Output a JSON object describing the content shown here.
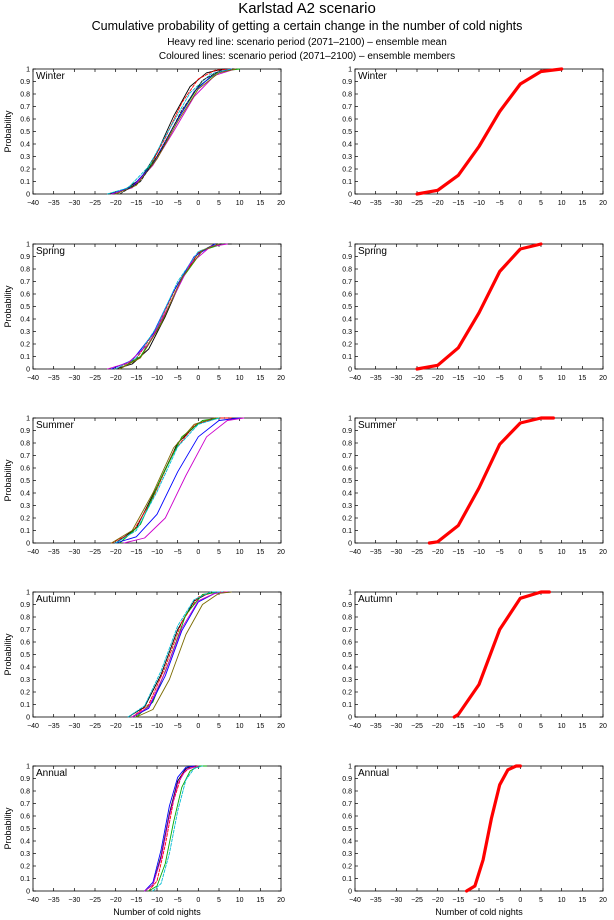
{
  "figure": {
    "title": "Karlstad A2 scenario",
    "subtitle": "Cumulative probability of getting a certain change in the number of cold nights",
    "note1": "Heavy red line: scenario period (2071–2100) – ensemble mean",
    "note2": "Coloured lines: scenario period (2071–2100) – ensemble members"
  },
  "chart_data": {
    "type": "line",
    "layout": "5 rows x 2 columns; left column = ensemble members, right column = ensemble mean",
    "xlabel": "Number of cold nights",
    "ylabel": "Probability",
    "xlim": [
      -40,
      20
    ],
    "ylim": [
      0,
      1
    ],
    "xticks": [
      -40,
      -35,
      -30,
      -25,
      -20,
      -15,
      -10,
      -5,
      0,
      5,
      10,
      15,
      20
    ],
    "yticks": [
      0,
      0.1,
      0.2,
      0.3,
      0.4,
      0.5,
      0.6,
      0.7,
      0.8,
      0.9,
      1
    ],
    "grid": false,
    "member_colors": [
      "#000000",
      "#ff0000",
      "#00aa00",
      "#0000ff",
      "#00bcd4",
      "#cc00cc",
      "#7a6a00",
      "#222222"
    ],
    "mean_color": "#ff0000",
    "panels": [
      {
        "season": "Winter",
        "mean": {
          "x": [
            -25,
            -20,
            -15,
            -10,
            -5,
            0,
            5,
            10
          ],
          "y": [
            0,
            0.03,
            0.15,
            0.38,
            0.66,
            0.88,
            0.98,
            1
          ]
        },
        "members": [
          {
            "x": [
              -22,
              -18,
              -14,
              -10,
              -6,
              -2,
              2,
              6,
              9
            ],
            "y": [
              0,
              0.03,
              0.12,
              0.33,
              0.62,
              0.86,
              0.97,
              1,
              1
            ]
          },
          {
            "x": [
              -20,
              -16,
              -12,
              -8,
              -4,
              0,
              4,
              8
            ],
            "y": [
              0,
              0.06,
              0.2,
              0.45,
              0.73,
              0.92,
              0.99,
              1
            ]
          },
          {
            "x": [
              -20,
              -15,
              -10,
              -5,
              0,
              5,
              10
            ],
            "y": [
              0,
              0.08,
              0.3,
              0.6,
              0.86,
              0.98,
              1
            ]
          },
          {
            "x": [
              -21,
              -16,
              -11,
              -6,
              -1,
              4,
              8
            ],
            "y": [
              0,
              0.06,
              0.24,
              0.54,
              0.82,
              0.97,
              1
            ]
          },
          {
            "x": [
              -22,
              -17,
              -12,
              -7,
              -2,
              3,
              8
            ],
            "y": [
              0,
              0.05,
              0.22,
              0.52,
              0.81,
              0.96,
              1
            ]
          },
          {
            "x": [
              -21,
              -16,
              -11,
              -6,
              -1,
              4,
              9
            ],
            "y": [
              0,
              0.05,
              0.23,
              0.5,
              0.78,
              0.95,
              1
            ]
          },
          {
            "x": [
              -20,
              -15,
              -10,
              -5,
              0,
              5,
              9
            ],
            "y": [
              0,
              0.07,
              0.28,
              0.58,
              0.84,
              0.97,
              1
            ]
          },
          {
            "x": [
              -19,
              -14,
              -9,
              -4,
              1,
              6
            ],
            "y": [
              0,
              0.1,
              0.35,
              0.67,
              0.91,
              1
            ]
          }
        ]
      },
      {
        "season": "Spring",
        "mean": {
          "x": [
            -25,
            -20,
            -15,
            -10,
            -5,
            0,
            5
          ],
          "y": [
            0,
            0.03,
            0.17,
            0.45,
            0.78,
            0.96,
            1
          ]
        },
        "members": [
          {
            "x": [
              -20,
              -16,
              -12,
              -8,
              -4,
              0,
              4,
              8
            ],
            "y": [
              0,
              0.04,
              0.16,
              0.42,
              0.72,
              0.93,
              1,
              1
            ]
          },
          {
            "x": [
              -20,
              -15,
              -10,
              -5,
              0,
              5
            ],
            "y": [
              0,
              0.08,
              0.33,
              0.68,
              0.93,
              1
            ]
          },
          {
            "x": [
              -19,
              -14,
              -9,
              -4,
              1,
              6
            ],
            "y": [
              0,
              0.1,
              0.37,
              0.72,
              0.95,
              1
            ]
          },
          {
            "x": [
              -21,
              -16,
              -11,
              -6,
              -1,
              4
            ],
            "y": [
              0,
              0.07,
              0.28,
              0.62,
              0.9,
              1
            ]
          },
          {
            "x": [
              -20,
              -15,
              -10,
              -5,
              0,
              5
            ],
            "y": [
              0,
              0.09,
              0.34,
              0.7,
              0.94,
              1
            ]
          },
          {
            "x": [
              -22,
              -17,
              -12,
              -7,
              -2,
              3,
              7
            ],
            "y": [
              0,
              0.05,
              0.2,
              0.51,
              0.84,
              0.98,
              1
            ]
          },
          {
            "x": [
              -19,
              -14,
              -9,
              -4,
              1,
              5
            ],
            "y": [
              0,
              0.09,
              0.36,
              0.73,
              0.95,
              1
            ]
          }
        ]
      },
      {
        "season": "Summer",
        "mean": {
          "x": [
            -22,
            -20,
            -15,
            -10,
            -5,
            0,
            5,
            8
          ],
          "y": [
            0,
            0.01,
            0.14,
            0.44,
            0.79,
            0.96,
            1,
            1
          ]
        },
        "members": [
          {
            "x": [
              -20,
              -15,
              -10,
              -5,
              0,
              5,
              8
            ],
            "y": [
              0,
              0.12,
              0.45,
              0.8,
              0.96,
              1,
              1
            ]
          },
          {
            "x": [
              -21,
              -16,
              -11,
              -6,
              -1,
              4,
              8
            ],
            "y": [
              0,
              0.08,
              0.36,
              0.73,
              0.94,
              1,
              1
            ]
          },
          {
            "x": [
              -19,
              -14,
              -9,
              -4,
              1,
              5
            ],
            "y": [
              0,
              0.15,
              0.52,
              0.85,
              0.98,
              1
            ]
          },
          {
            "x": [
              -20,
              -15,
              -10,
              -5,
              0,
              5,
              10
            ],
            "y": [
              0,
              0.05,
              0.23,
              0.57,
              0.85,
              0.98,
              1
            ]
          },
          {
            "x": [
              -20,
              -15,
              -10,
              -5,
              0,
              5
            ],
            "y": [
              0,
              0.1,
              0.41,
              0.77,
              0.95,
              1
            ]
          },
          {
            "x": [
              -18,
              -13,
              -8,
              -3,
              2,
              7,
              11
            ],
            "y": [
              0,
              0.04,
              0.2,
              0.54,
              0.85,
              0.98,
              1
            ]
          },
          {
            "x": [
              -21,
              -16,
              -11,
              -6,
              -1,
              4
            ],
            "y": [
              0,
              0.1,
              0.4,
              0.76,
              0.95,
              1
            ]
          }
        ]
      },
      {
        "season": "Autumn",
        "mean": {
          "x": [
            -16,
            -15,
            -10,
            -5,
            0,
            5,
            7
          ],
          "y": [
            0,
            0.02,
            0.26,
            0.7,
            0.95,
            1,
            1
          ]
        },
        "members": [
          {
            "x": [
              -17,
              -13,
              -9,
              -5,
              -1,
              3,
              7
            ],
            "y": [
              0,
              0.08,
              0.34,
              0.7,
              0.93,
              1,
              1
            ]
          },
          {
            "x": [
              -16,
              -12,
              -8,
              -4,
              0,
              4,
              7
            ],
            "y": [
              0,
              0.1,
              0.4,
              0.76,
              0.96,
              1,
              1
            ]
          },
          {
            "x": [
              -15,
              -11,
              -7,
              -3,
              1,
              5
            ],
            "y": [
              0,
              0.12,
              0.45,
              0.82,
              0.98,
              1
            ]
          },
          {
            "x": [
              -16,
              -12,
              -8,
              -4,
              0,
              4,
              8
            ],
            "y": [
              0,
              0.07,
              0.33,
              0.69,
              0.92,
              0.99,
              1
            ]
          },
          {
            "x": [
              -17,
              -13,
              -9,
              -5,
              -1,
              3,
              6
            ],
            "y": [
              0,
              0.09,
              0.37,
              0.73,
              0.94,
              1,
              1
            ]
          },
          {
            "x": [
              -16,
              -12,
              -8,
              -4,
              0,
              4,
              7
            ],
            "y": [
              0,
              0.08,
              0.36,
              0.71,
              0.93,
              0.99,
              1
            ]
          },
          {
            "x": [
              -15,
              -11,
              -7,
              -3,
              1,
              5,
              8
            ],
            "y": [
              0,
              0.06,
              0.3,
              0.66,
              0.9,
              0.99,
              1
            ]
          }
        ]
      },
      {
        "season": "Annual",
        "mean": {
          "x": [
            -13,
            -11,
            -9,
            -7,
            -5,
            -3,
            -1,
            0
          ],
          "y": [
            0,
            0.04,
            0.25,
            0.58,
            0.85,
            0.97,
            1,
            1
          ]
        },
        "members": [
          {
            "x": [
              -13,
              -11,
              -9,
              -7,
              -5,
              -3,
              -1,
              1
            ],
            "y": [
              0,
              0.05,
              0.28,
              0.62,
              0.88,
              0.98,
              1,
              1
            ]
          },
          {
            "x": [
              -12,
              -10,
              -8,
              -6,
              -4,
              -2,
              0
            ],
            "y": [
              0,
              0.08,
              0.37,
              0.72,
              0.93,
              0.99,
              1
            ]
          },
          {
            "x": [
              -12,
              -10,
              -8,
              -6,
              -4,
              -2,
              0,
              2
            ],
            "y": [
              0,
              0.04,
              0.22,
              0.55,
              0.83,
              0.96,
              1,
              1
            ]
          },
          {
            "x": [
              -13,
              -11,
              -9,
              -7,
              -5,
              -3,
              -1
            ],
            "y": [
              0,
              0.07,
              0.33,
              0.68,
              0.91,
              0.99,
              1
            ]
          },
          {
            "x": [
              -11,
              -9,
              -7,
              -5,
              -3,
              -1,
              1
            ],
            "y": [
              0,
              0.06,
              0.3,
              0.64,
              0.89,
              0.98,
              1
            ]
          },
          {
            "x": [
              -13,
              -11,
              -9,
              -7,
              -5,
              -3,
              0
            ],
            "y": [
              0,
              0.05,
              0.26,
              0.6,
              0.86,
              0.97,
              1
            ]
          }
        ]
      }
    ]
  }
}
